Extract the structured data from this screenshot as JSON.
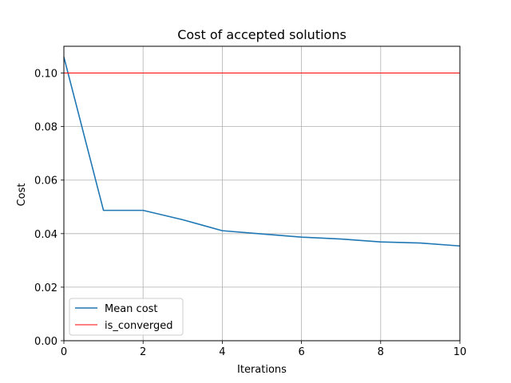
{
  "chart_data": {
    "type": "line",
    "title": "Cost of accepted solutions",
    "xlabel": "Iterations",
    "ylabel": "Cost",
    "xlim": [
      0,
      10
    ],
    "ylim": [
      0,
      0.11
    ],
    "xticks": [
      0,
      2,
      4,
      6,
      8,
      10
    ],
    "xtick_labels": [
      "0",
      "2",
      "4",
      "6",
      "8",
      "10"
    ],
    "yticks": [
      0.0,
      0.02,
      0.04,
      0.06,
      0.08,
      0.1
    ],
    "ytick_labels": [
      "0.00",
      "0.02",
      "0.04",
      "0.06",
      "0.08",
      "0.10"
    ],
    "grid": true,
    "legend_position": "lower-left",
    "series": [
      {
        "name": "Mean cost",
        "color": "#1f77b4",
        "kind": "line",
        "x": [
          0,
          1,
          2,
          3,
          4,
          5,
          6,
          7,
          8,
          9,
          10
        ],
        "y": [
          0.106,
          0.0487,
          0.0487,
          0.0452,
          0.0411,
          0.0399,
          0.0387,
          0.038,
          0.0369,
          0.0365,
          0.0354
        ]
      },
      {
        "name": "is_converged",
        "color": "#ff0000",
        "kind": "hline",
        "y": 0.1
      }
    ]
  }
}
